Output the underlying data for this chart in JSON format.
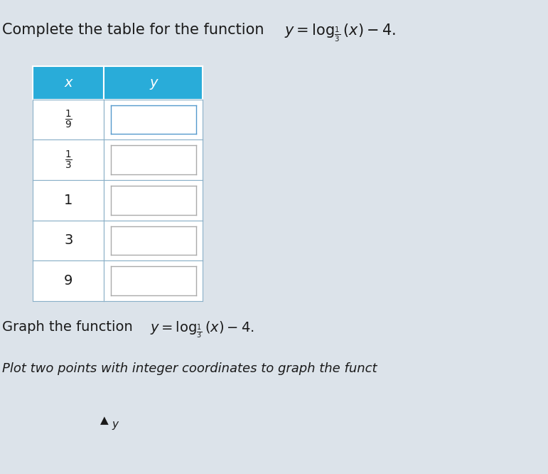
{
  "title_text": "Complete the table for the function ",
  "title_math": "$y = \\log_{\\frac{1}{3}}(x) - 4.$",
  "table_header_x": "x",
  "table_header_y": "y",
  "x_values": [
    "1/9",
    "1/3",
    "1",
    "3",
    "9"
  ],
  "header_bg": "#29acd9",
  "header_text_color": "#ffffff",
  "cell_bg": "#ffffff",
  "cell_border": "#8ab0c8",
  "input_box_bg": "#ffffff",
  "input_box_border": "#5599cc",
  "fig_bg": "#dce3ea",
  "text_color": "#1a1a1a",
  "graph_prefix": "Graph the function ",
  "graph_math": "$y = \\log_{\\frac{1}{3}}(x) - 4.$",
  "plot_text": "Plot two points with integer coordinates to graph the funct",
  "title_fontsize": 15,
  "body_fontsize": 13,
  "graph_fontsize": 14
}
